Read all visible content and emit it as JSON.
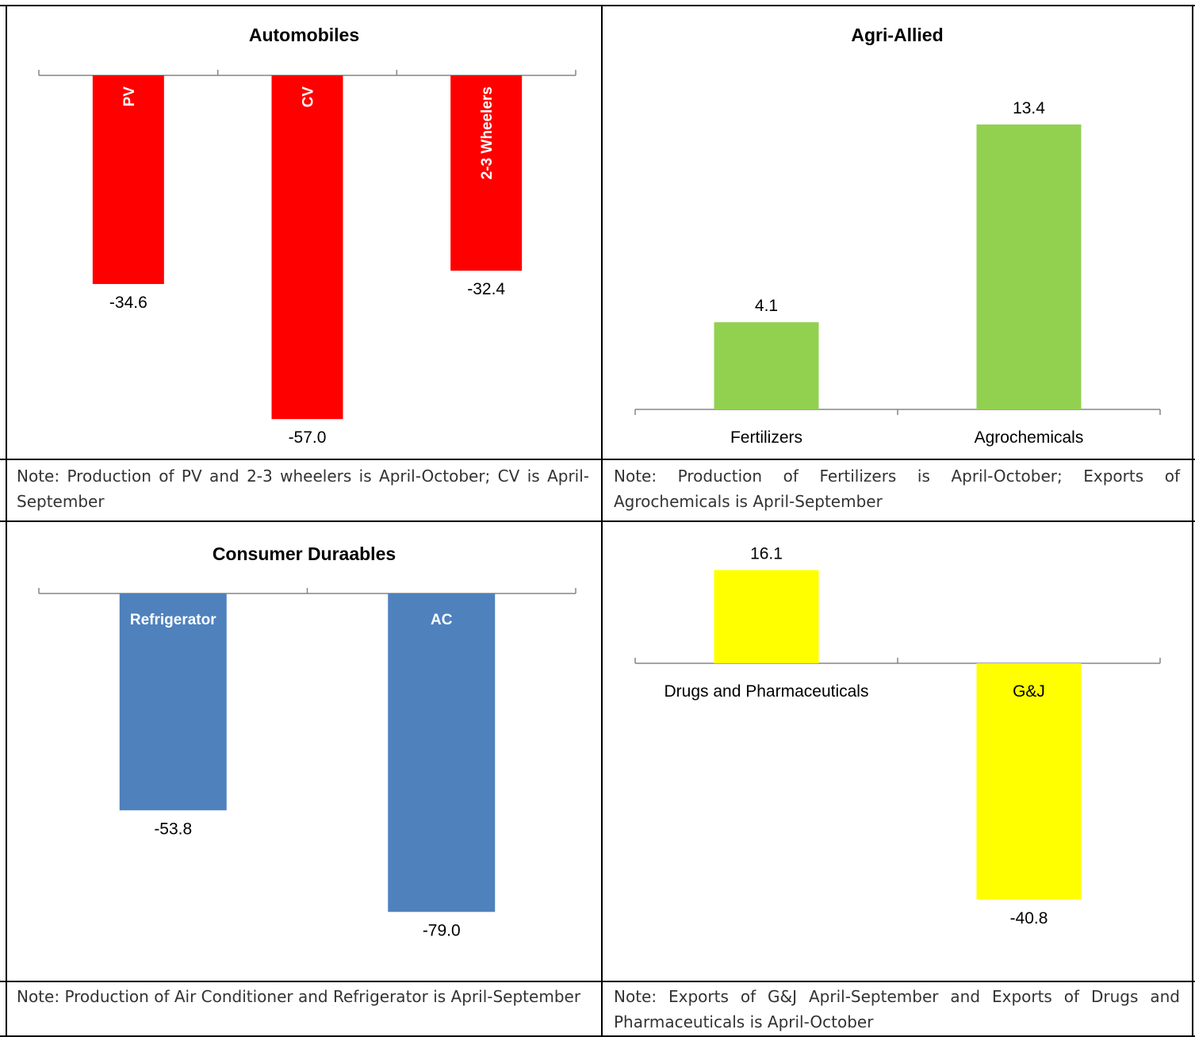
{
  "chart_data": [
    {
      "type": "bar",
      "title": "Automobiles",
      "categories": [
        "PV",
        "CV",
        "2-3 Wheelers"
      ],
      "values": [
        -34.6,
        -57.0,
        -32.4
      ],
      "value_labels": [
        "-34.6",
        "-57.0",
        "-32.4"
      ],
      "color": "#ff0000",
      "label_style": "vertical-inside-bar",
      "note": "Note: Production of PV and 2-3 wheelers is April-October; CV is April-September"
    },
    {
      "type": "bar",
      "title": "Agri-Allied",
      "categories": [
        "Fertilizers",
        "Agrochemicals"
      ],
      "values": [
        4.1,
        13.4
      ],
      "value_labels": [
        "4.1",
        "13.4"
      ],
      "color": "#92d050",
      "label_style": "below-axis",
      "note": "Note: Production of Fertilizers is April-October; Exports of Agrochemicals is April-September"
    },
    {
      "type": "bar",
      "title": "Consumer Duraables",
      "categories": [
        "Refrigerator",
        "AC"
      ],
      "values": [
        -53.8,
        -79.0
      ],
      "value_labels": [
        "-53.8",
        "-79.0"
      ],
      "color": "#4f81bd",
      "label_style": "inside-bar-top",
      "note": "Note: Production of Air Conditioner and Refrigerator is April-September"
    },
    {
      "type": "bar",
      "title": "",
      "categories": [
        "Drugs and Pharmaceuticals",
        "G&J"
      ],
      "values": [
        16.1,
        -40.8
      ],
      "value_labels": [
        "16.1",
        "-40.8"
      ],
      "color": "#ffff00",
      "label_style": "below-axis",
      "note": "Note: Exports of G&J April-September and Exports of Drugs and Pharmaceuticals is April-October"
    }
  ]
}
